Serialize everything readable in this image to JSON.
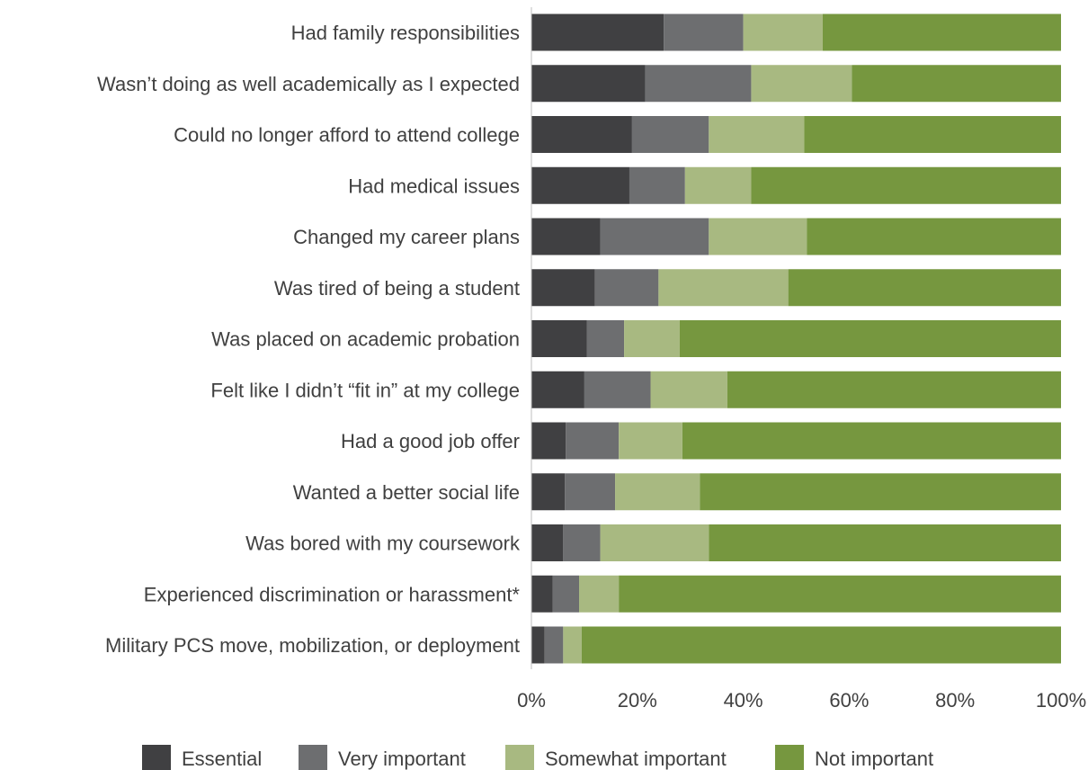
{
  "chart_data": {
    "type": "bar",
    "orientation": "horizontal",
    "stacked": true,
    "categories": [
      "Had family responsibilities",
      "Wasn’t doing as well academically as I expected",
      "Could no longer afford to attend college",
      "Had medical issues",
      "Changed my career plans",
      "Was tired of being a student",
      "Was placed on academic probation",
      "Felt like I didn’t “fit in” at my college",
      "Had a good job offer",
      "Wanted a better social life",
      "Was bored with my coursework",
      "Experienced discrimination or harassment*",
      "Military PCS move, mobilization, or deployment"
    ],
    "series": [
      {
        "name": "Essential",
        "color": "#404042",
        "values": [
          25,
          21.5,
          19,
          18.5,
          13,
          12,
          10.5,
          10,
          6.5,
          6.3,
          6,
          4,
          2.5
        ]
      },
      {
        "name": "Very important",
        "color": "#6d6e70",
        "values": [
          15,
          20,
          14.5,
          10.5,
          20.5,
          12,
          7,
          12.5,
          10,
          9.5,
          7,
          5,
          3.5
        ]
      },
      {
        "name": "Somewhat important",
        "color": "#a8b981",
        "values": [
          15,
          19,
          18,
          12.5,
          18.5,
          24.5,
          10.5,
          14.5,
          12,
          16,
          20.5,
          7.5,
          3.5
        ]
      },
      {
        "name": "Not important",
        "color": "#76973f",
        "values": [
          45,
          39.5,
          48.5,
          58.5,
          48,
          51.5,
          72,
          63,
          71.5,
          68.2,
          66.5,
          83.5,
          90.5
        ]
      }
    ],
    "xlim": [
      0,
      100
    ],
    "x_ticks": [
      "0%",
      "20%",
      "40%",
      "60%",
      "80%",
      "100%"
    ],
    "xlabel": "",
    "ylabel": "",
    "legend_position": "bottom",
    "grid": false
  }
}
